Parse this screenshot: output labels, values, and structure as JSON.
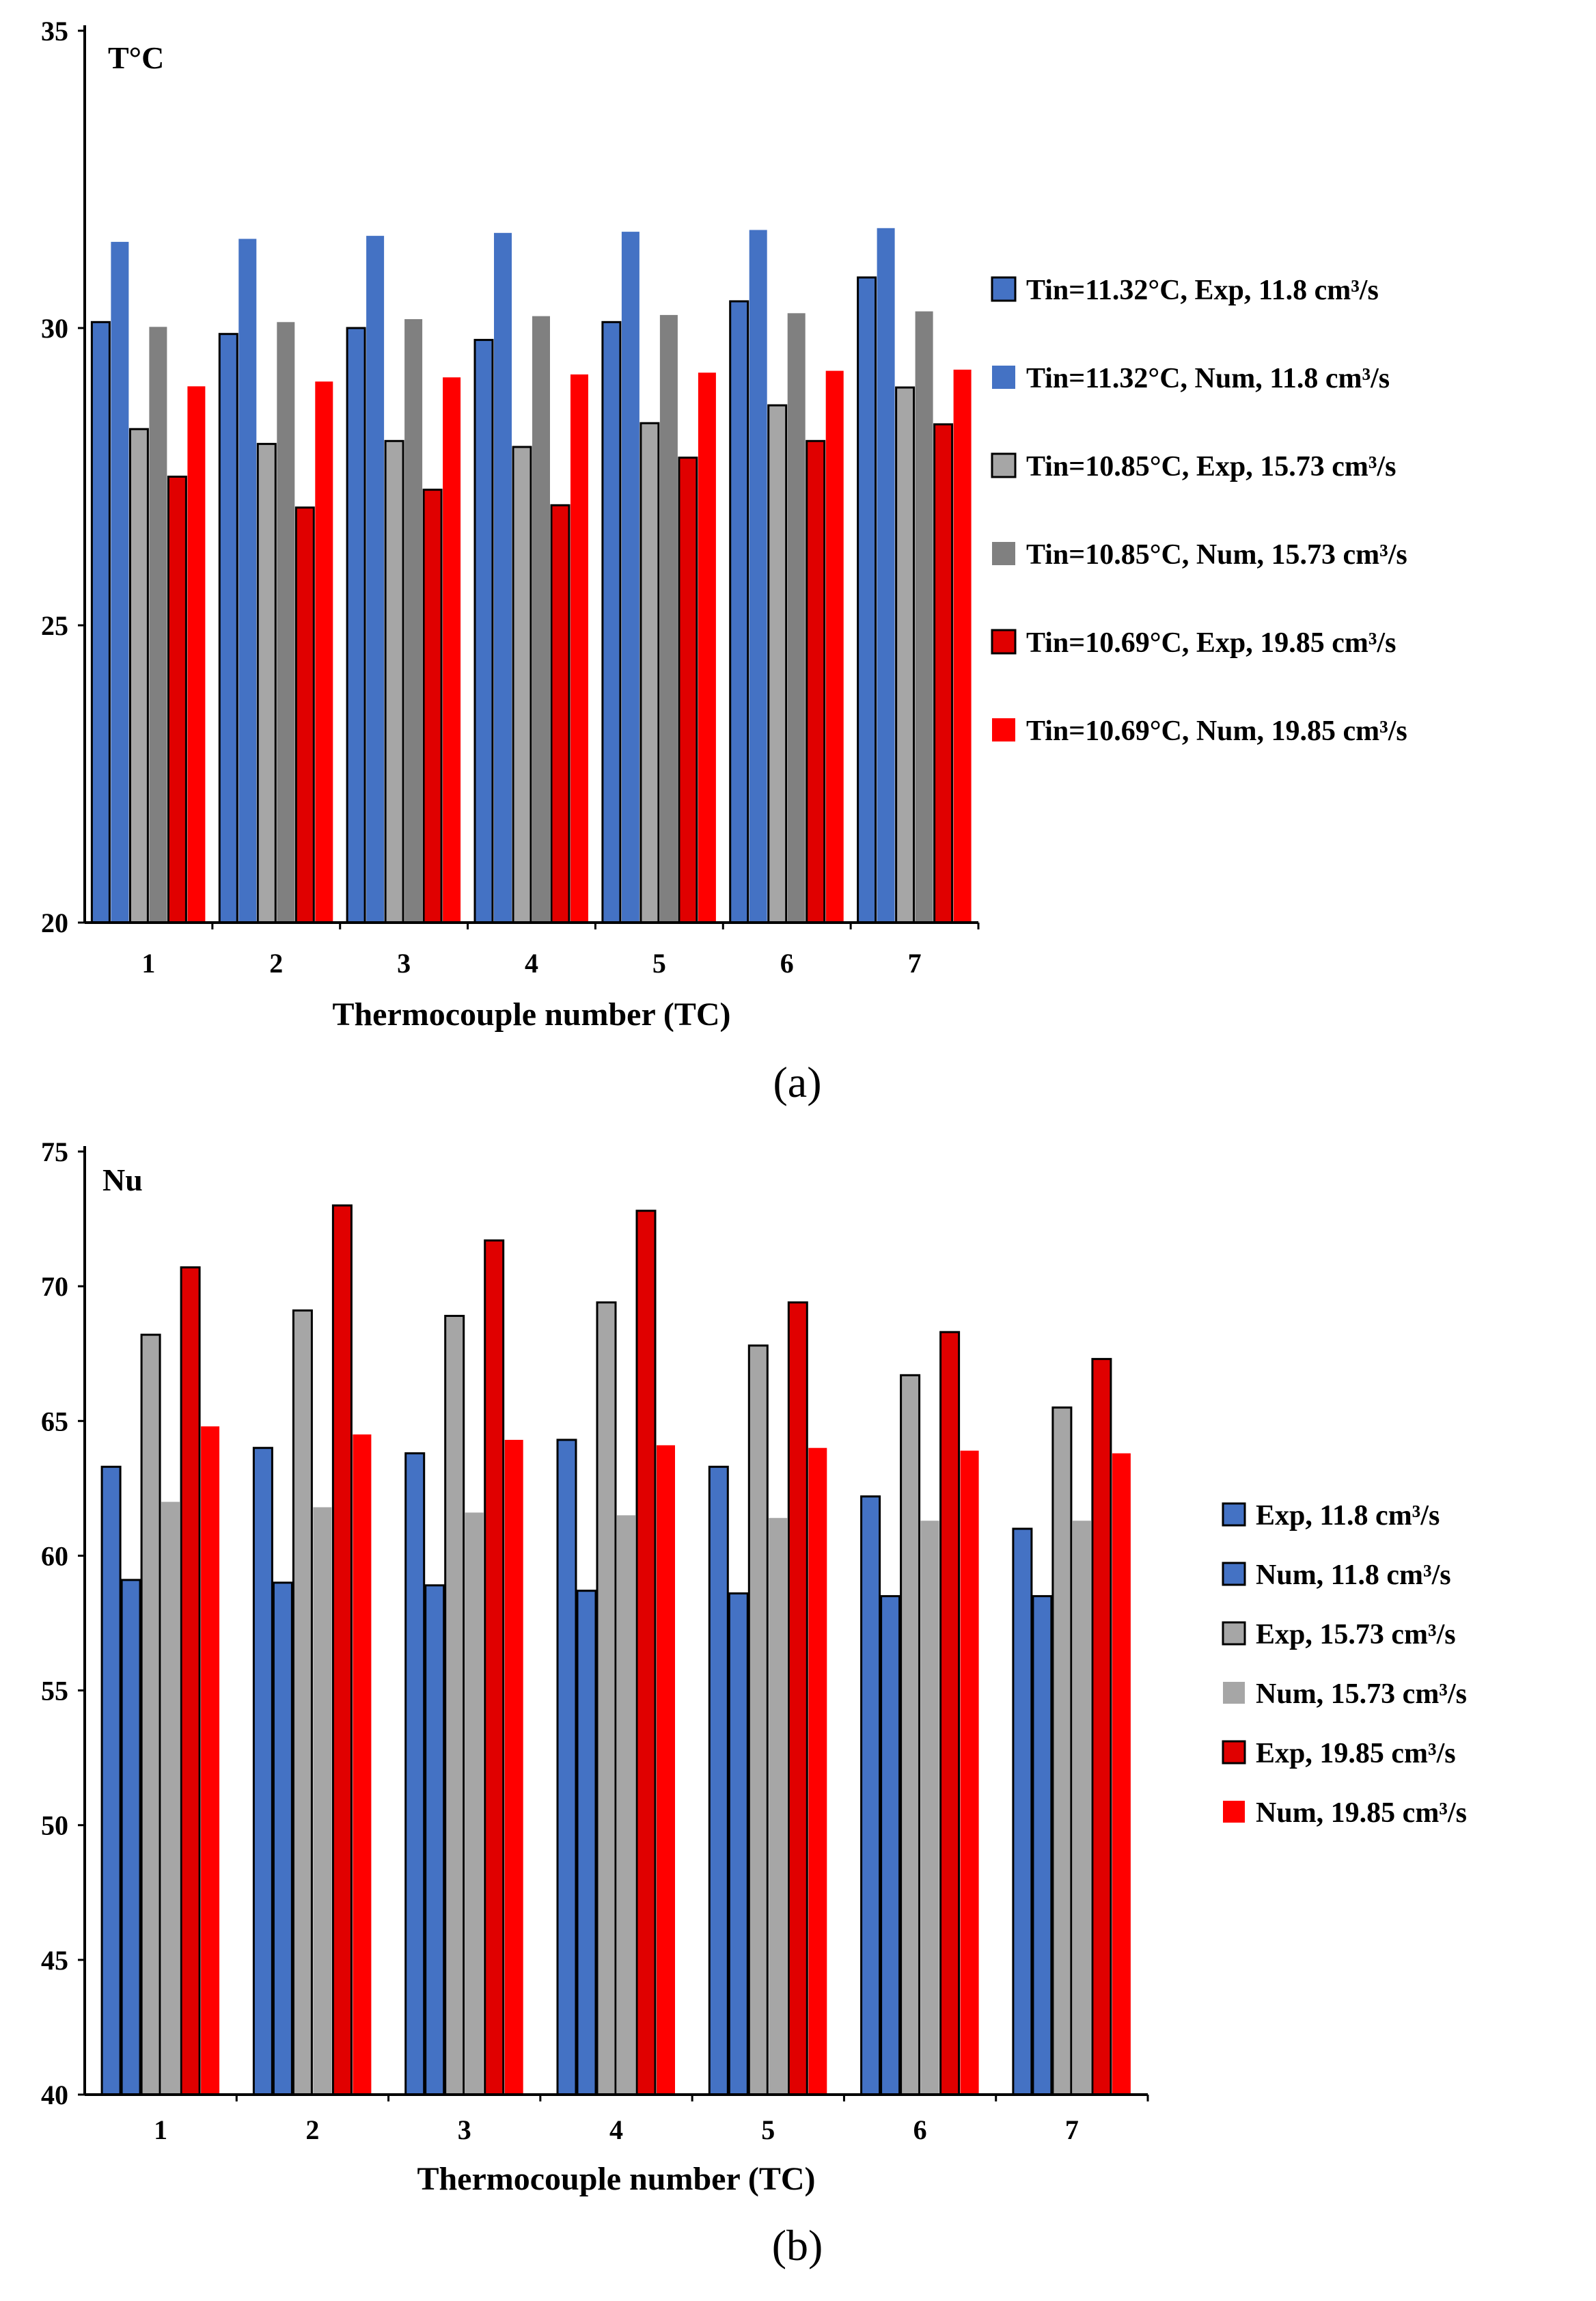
{
  "chart_data": [
    {
      "type": "bar",
      "panel_label": "(a)",
      "unit_label": "T°C",
      "xlabel": "Thermocouple number (TC)",
      "ylabel": "",
      "ylim": [
        20,
        35
      ],
      "yticks": [
        20,
        25,
        30,
        35
      ],
      "categories": [
        "1",
        "2",
        "3",
        "4",
        "5",
        "6",
        "7"
      ],
      "legend_position": "right",
      "series": [
        {
          "name": "Tin=11.32°C, Exp, 11.8 cm³/s",
          "color": "#4472C4",
          "outlined": true,
          "values": [
            30.1,
            29.9,
            30.0,
            29.8,
            30.1,
            30.45,
            30.85
          ]
        },
        {
          "name": "Tin=11.32°C, Num, 11.8 cm³/s",
          "color": "#4472C4",
          "outlined": false,
          "values": [
            31.45,
            31.5,
            31.55,
            31.6,
            31.62,
            31.65,
            31.68
          ]
        },
        {
          "name": "Tin=10.85°C, Exp, 15.73 cm³/s",
          "color": "#A6A6A6",
          "outlined": true,
          "values": [
            28.3,
            28.05,
            28.1,
            28.0,
            28.4,
            28.7,
            29.0
          ]
        },
        {
          "name": "Tin=10.85°C, Num, 15.73 cm³/s",
          "color": "#808080",
          "outlined": false,
          "values": [
            30.02,
            30.1,
            30.15,
            30.2,
            30.22,
            30.25,
            30.28
          ]
        },
        {
          "name": "Tin=10.69°C, Exp, 19.85 cm³/s",
          "color": "#E00000",
          "outlined": true,
          "values": [
            27.5,
            26.98,
            27.28,
            27.02,
            27.82,
            28.1,
            28.38
          ]
        },
        {
          "name": "Tin=10.69°C, Num, 19.85 cm³/s",
          "color": "#FF0000",
          "outlined": false,
          "values": [
            29.02,
            29.1,
            29.17,
            29.22,
            29.25,
            29.28,
            29.3
          ]
        }
      ]
    },
    {
      "type": "bar",
      "panel_label": "(b)",
      "unit_label": "Nu",
      "xlabel": "Thermocouple number (TC)",
      "ylabel": "",
      "ylim": [
        40,
        75
      ],
      "yticks": [
        40,
        45,
        50,
        55,
        60,
        65,
        70,
        75
      ],
      "categories": [
        "1",
        "2",
        "3",
        "4",
        "5",
        "6",
        "7"
      ],
      "legend_position": "right",
      "series": [
        {
          "name": "Exp, 11.8 cm³/s",
          "color": "#4472C4",
          "outlined": true,
          "values": [
            63.3,
            64.0,
            63.8,
            64.3,
            63.3,
            62.2,
            61.0
          ]
        },
        {
          "name": "Num, 11.8 cm³/s",
          "color": "#4472C4",
          "outlined": true,
          "values": [
            59.1,
            59.0,
            58.9,
            58.7,
            58.6,
            58.5,
            58.5
          ]
        },
        {
          "name": "Exp, 15.73 cm³/s",
          "color": "#A6A6A6",
          "outlined": true,
          "values": [
            68.2,
            69.1,
            68.9,
            69.4,
            67.8,
            66.7,
            65.5
          ]
        },
        {
          "name": "Num, 15.73 cm³/s",
          "color": "#A6A6A6",
          "outlined": false,
          "values": [
            62.0,
            61.8,
            61.6,
            61.5,
            61.4,
            61.3,
            61.3
          ]
        },
        {
          "name": "Exp, 19.85 cm³/s",
          "color": "#E00000",
          "outlined": true,
          "values": [
            70.7,
            73.0,
            71.7,
            72.8,
            69.4,
            68.3,
            67.3
          ]
        },
        {
          "name": "Num, 19.85 cm³/s",
          "color": "#FF0000",
          "outlined": false,
          "values": [
            64.8,
            64.5,
            64.3,
            64.1,
            64.0,
            63.9,
            63.8
          ]
        }
      ]
    }
  ]
}
